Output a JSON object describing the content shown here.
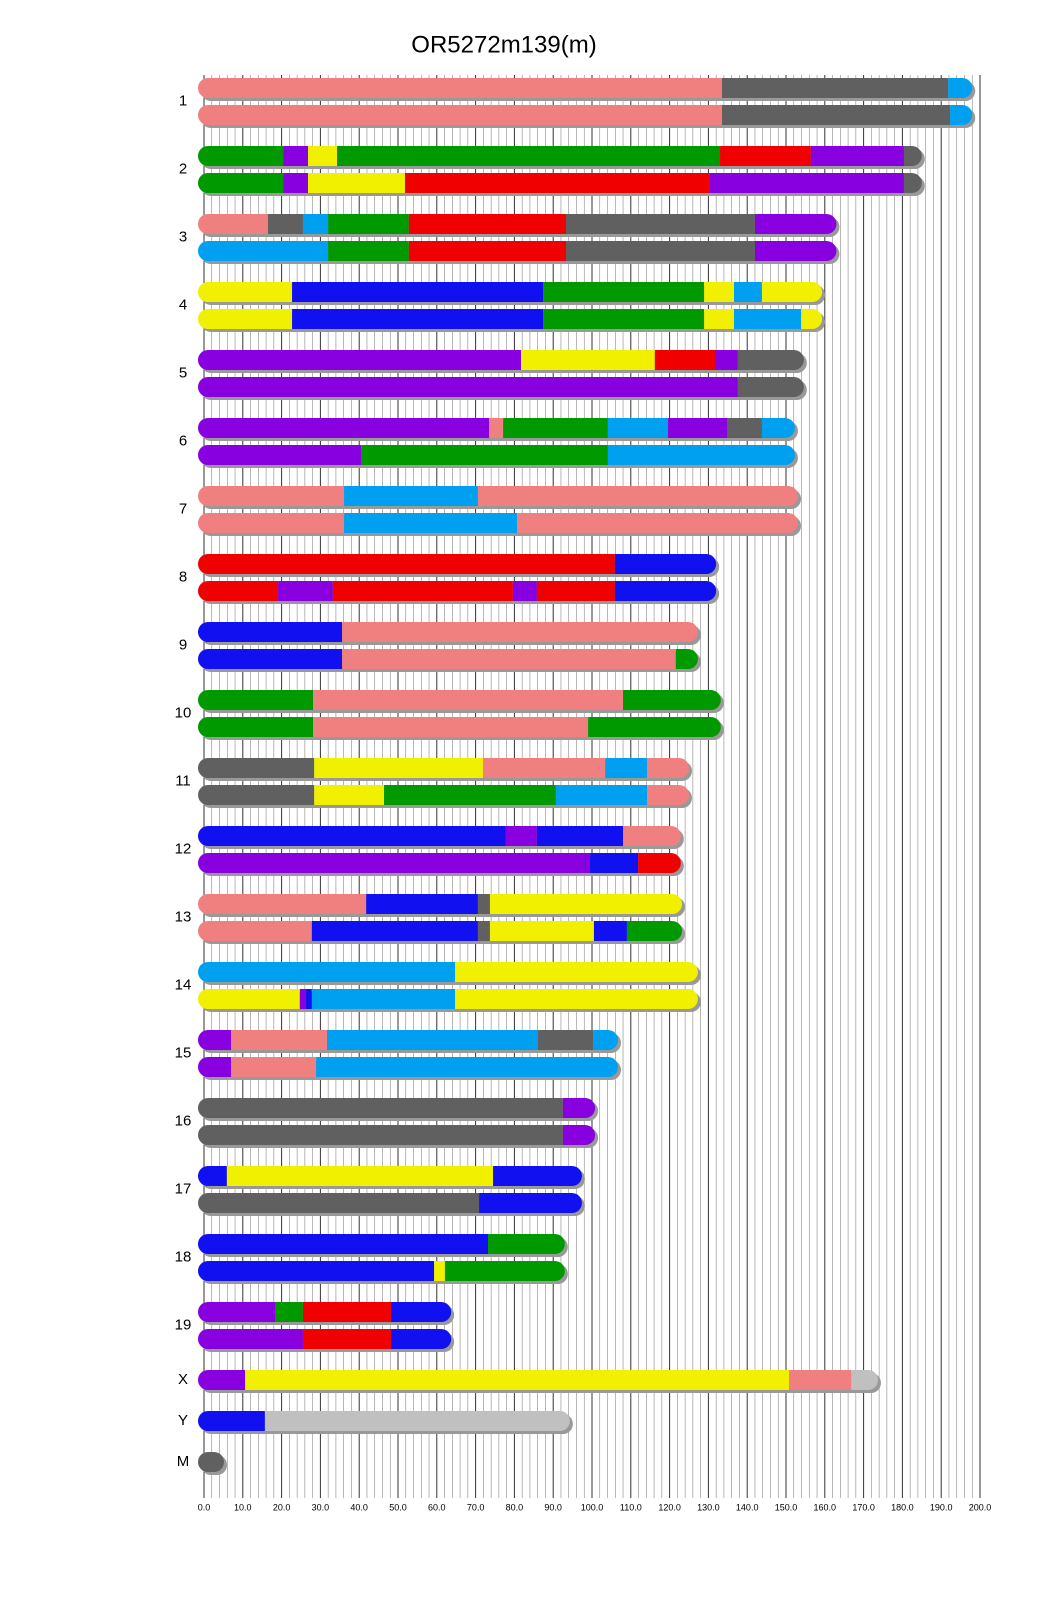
{
  "chart_data": {
    "type": "mosaic",
    "title": "OR5272m139(m)",
    "xlim": [
      0,
      200
    ],
    "xticks": [
      {
        "value": 0,
        "label": "0.0"
      },
      {
        "value": 10,
        "label": "10.0"
      },
      {
        "value": 20,
        "label": "20.0"
      },
      {
        "value": 30,
        "label": "30.0"
      },
      {
        "value": 40,
        "label": "40.0"
      },
      {
        "value": 50,
        "label": "50.0"
      },
      {
        "value": 60,
        "label": "60.0"
      },
      {
        "value": 70,
        "label": "70.0"
      },
      {
        "value": 80,
        "label": "80.0"
      },
      {
        "value": 90,
        "label": "90.0"
      },
      {
        "value": 100,
        "label": "100.0"
      },
      {
        "value": 110,
        "label": "110.0"
      },
      {
        "value": 120,
        "label": "120.0"
      },
      {
        "value": 130,
        "label": "130.0"
      },
      {
        "value": 140,
        "label": "140.0"
      },
      {
        "value": 150,
        "label": "150.0"
      },
      {
        "value": 160,
        "label": "160.0"
      },
      {
        "value": 170,
        "label": "170.0"
      },
      {
        "value": 180,
        "label": "180.0"
      },
      {
        "value": 190,
        "label": "190.0"
      },
      {
        "value": 200,
        "label": "200.0"
      }
    ],
    "grid": true,
    "chromosomes": [
      {
        "label": "1",
        "haplotypes": [
          {
            "ends": [
              133.5,
              191.8,
              198
            ],
            "colors": [
              "#f08080",
              "#606060",
              "#00a0f0"
            ]
          },
          {
            "ends": [
              133.5,
              192.3,
              198
            ],
            "colors": [
              "#f08080",
              "#606060",
              "#00a0f0"
            ]
          }
        ]
      },
      {
        "label": "2",
        "haplotypes": [
          {
            "ends": [
              20.4,
              26.8,
              34.3,
              133,
              156.4,
              180.4,
              185
            ],
            "colors": [
              "#009900",
              "#8800e0",
              "#f0f000",
              "#009900",
              "#f00000",
              "#8800e0",
              "#606060"
            ]
          },
          {
            "ends": [
              20.4,
              26.8,
              51.8,
              130.4,
              180.4,
              185
            ],
            "colors": [
              "#009900",
              "#8800e0",
              "#f0f000",
              "#f00000",
              "#8800e0",
              "#606060"
            ]
          }
        ]
      },
      {
        "label": "3",
        "haplotypes": [
          {
            "ends": [
              16.5,
              25.5,
              32,
              52.8,
              93.3,
              142,
              163
            ],
            "colors": [
              "#f08080",
              "#606060",
              "#00a0f0",
              "#009900",
              "#f00000",
              "#606060",
              "#8800e0"
            ]
          },
          {
            "ends": [
              32,
              52.8,
              93.3,
              142,
              163
            ],
            "colors": [
              "#00a0f0",
              "#009900",
              "#f00000",
              "#606060",
              "#8800e0"
            ]
          }
        ]
      },
      {
        "label": "4",
        "haplotypes": [
          {
            "ends": [
              22.7,
              87.4,
              128.9,
              136.6,
              143.8,
              159.3
            ],
            "colors": [
              "#f0f000",
              "#1010f0",
              "#009900",
              "#f0f000",
              "#00a0f0",
              "#f0f000"
            ]
          },
          {
            "ends": [
              22.7,
              87.4,
              128.9,
              136.6,
              153.9,
              159.3
            ],
            "colors": [
              "#f0f000",
              "#1010f0",
              "#009900",
              "#f0f000",
              "#00a0f0",
              "#f0f000"
            ]
          }
        ]
      },
      {
        "label": "5",
        "haplotypes": [
          {
            "ends": [
              81.7,
              116.2,
              131.7,
              137.6,
              154.6
            ],
            "colors": [
              "#8800e0",
              "#f0f000",
              "#f00000",
              "#8800e0",
              "#606060"
            ]
          },
          {
            "ends": [
              137.6,
              154.6
            ],
            "colors": [
              "#8800e0",
              "#606060"
            ]
          }
        ]
      },
      {
        "label": "6",
        "haplotypes": [
          {
            "ends": [
              73.5,
              77.1,
              104.1,
              119.6,
              134.8,
              143.8,
              152.3
            ],
            "colors": [
              "#8800e0",
              "#f08080",
              "#009900",
              "#00a0f0",
              "#8800e0",
              "#606060",
              "#00a0f0"
            ]
          },
          {
            "ends": [
              40.5,
              104.1,
              152.3
            ],
            "colors": [
              "#8800e0",
              "#009900",
              "#00a0f0"
            ]
          }
        ]
      },
      {
        "label": "7",
        "haplotypes": [
          {
            "ends": [
              36.1,
              70.6,
              153.1
            ],
            "colors": [
              "#f08080",
              "#00a0f0",
              "#f08080"
            ]
          },
          {
            "ends": [
              36.1,
              80.7,
              153.1
            ],
            "colors": [
              "#f08080",
              "#00a0f0",
              "#f08080"
            ]
          }
        ]
      },
      {
        "label": "8",
        "haplotypes": [
          {
            "ends": [
              105.9,
              132
            ],
            "colors": [
              "#f00000",
              "#1010f0"
            ]
          },
          {
            "ends": [
              19.1,
              33.2,
              79.6,
              85.8,
              105.9,
              132
            ],
            "colors": [
              "#f00000",
              "#8800e0",
              "#f00000",
              "#8800e0",
              "#f00000",
              "#1010f0"
            ]
          }
        ]
      },
      {
        "label": "9",
        "haplotypes": [
          {
            "ends": [
              35.6,
              127.3
            ],
            "colors": [
              "#1010f0",
              "#f08080"
            ]
          },
          {
            "ends": [
              35.6,
              121.6,
              127.3
            ],
            "colors": [
              "#1010f0",
              "#f08080",
              "#009900"
            ]
          }
        ]
      },
      {
        "label": "10",
        "haplotypes": [
          {
            "ends": [
              28.1,
              108,
              133.2
            ],
            "colors": [
              "#009900",
              "#f08080",
              "#009900"
            ]
          },
          {
            "ends": [
              28.1,
              99,
              133.2
            ],
            "colors": [
              "#009900",
              "#f08080",
              "#009900"
            ]
          }
        ]
      },
      {
        "label": "11",
        "haplotypes": [
          {
            "ends": [
              28.4,
              71.9,
              103.4,
              114.2,
              125
            ],
            "colors": [
              "#606060",
              "#f0f000",
              "#f08080",
              "#00a0f0",
              "#f08080"
            ]
          },
          {
            "ends": [
              28.4,
              46.4,
              90.7,
              114.2,
              125
            ],
            "colors": [
              "#606060",
              "#f0f000",
              "#009900",
              "#00a0f0",
              "#f08080"
            ]
          }
        ]
      },
      {
        "label": "12",
        "haplotypes": [
          {
            "ends": [
              77.8,
              85.8,
              108,
              122.9
            ],
            "colors": [
              "#1010f0",
              "#8800e0",
              "#1010f0",
              "#f08080"
            ]
          },
          {
            "ends": [
              99.5,
              111.9,
              122.9
            ],
            "colors": [
              "#8800e0",
              "#1010f0",
              "#f00000"
            ]
          }
        ]
      },
      {
        "label": "13",
        "haplotypes": [
          {
            "ends": [
              41.8,
              70.6,
              73.7,
              123.2
            ],
            "colors": [
              "#f08080",
              "#1010f0",
              "#606060",
              "#f0f000"
            ]
          },
          {
            "ends": [
              27.8,
              70.6,
              73.7,
              100.5,
              109,
              123.2
            ],
            "colors": [
              "#f08080",
              "#1010f0",
              "#606060",
              "#f0f000",
              "#1010f0",
              "#009900"
            ]
          }
        ]
      },
      {
        "label": "14",
        "haplotypes": [
          {
            "ends": [
              64.7,
              127.3
            ],
            "colors": [
              "#00a0f0",
              "#f0f000"
            ]
          },
          {
            "ends": [
              24.7,
              26.3,
              27.8,
              64.7,
              127.3
            ],
            "colors": [
              "#f0f000",
              "#8800e0",
              "#1010f0",
              "#00a0f0",
              "#f0f000"
            ]
          }
        ]
      },
      {
        "label": "15",
        "haplotypes": [
          {
            "ends": [
              7,
              31.7,
              86.1,
              100.3,
              106.7
            ],
            "colors": [
              "#8800e0",
              "#f08080",
              "#00a0f0",
              "#606060",
              "#00a0f0"
            ]
          },
          {
            "ends": [
              7,
              28.9,
              106.7
            ],
            "colors": [
              "#8800e0",
              "#f08080",
              "#00a0f0"
            ]
          }
        ]
      },
      {
        "label": "16",
        "haplotypes": [
          {
            "ends": [
              92.5,
              100.8
            ],
            "colors": [
              "#606060",
              "#8800e0"
            ]
          },
          {
            "ends": [
              92.5,
              100.8
            ],
            "colors": [
              "#606060",
              "#8800e0"
            ]
          }
        ]
      },
      {
        "label": "17",
        "haplotypes": [
          {
            "ends": [
              5.9,
              74.5,
              97.4
            ],
            "colors": [
              "#1010f0",
              "#f0f000",
              "#1010f0"
            ]
          },
          {
            "ends": [
              70.9,
              97.4
            ],
            "colors": [
              "#606060",
              "#1010f0"
            ]
          }
        ]
      },
      {
        "label": "18",
        "haplotypes": [
          {
            "ends": [
              73.2,
              93
            ],
            "colors": [
              "#1010f0",
              "#009900"
            ]
          },
          {
            "ends": [
              59.3,
              62.1,
              93
            ],
            "colors": [
              "#1010f0",
              "#f0f000",
              "#009900"
            ]
          }
        ]
      },
      {
        "label": "19",
        "haplotypes": [
          {
            "ends": [
              18.3,
              25.5,
              48.2,
              63.7
            ],
            "colors": [
              "#8800e0",
              "#009900",
              "#f00000",
              "#1010f0"
            ]
          },
          {
            "ends": [
              25.5,
              48.2,
              63.7
            ],
            "colors": [
              "#8800e0",
              "#f00000",
              "#1010f0"
            ]
          }
        ]
      },
      {
        "label": "X",
        "haplotypes": [
          {
            "ends": [
              10.6,
              150.8,
              166.8,
              173.7
            ],
            "colors": [
              "#8800e0",
              "#f0f000",
              "#f08080",
              "#c0c0c0"
            ]
          }
        ]
      },
      {
        "label": "Y",
        "haplotypes": [
          {
            "ends": [
              15.7,
              94.3
            ],
            "colors": [
              "#1010f0",
              "#c0c0c0"
            ]
          }
        ]
      },
      {
        "label": "M",
        "haplotypes": [
          {
            "ends": [
              1
            ],
            "colors": [
              "#606060"
            ]
          }
        ]
      }
    ]
  }
}
